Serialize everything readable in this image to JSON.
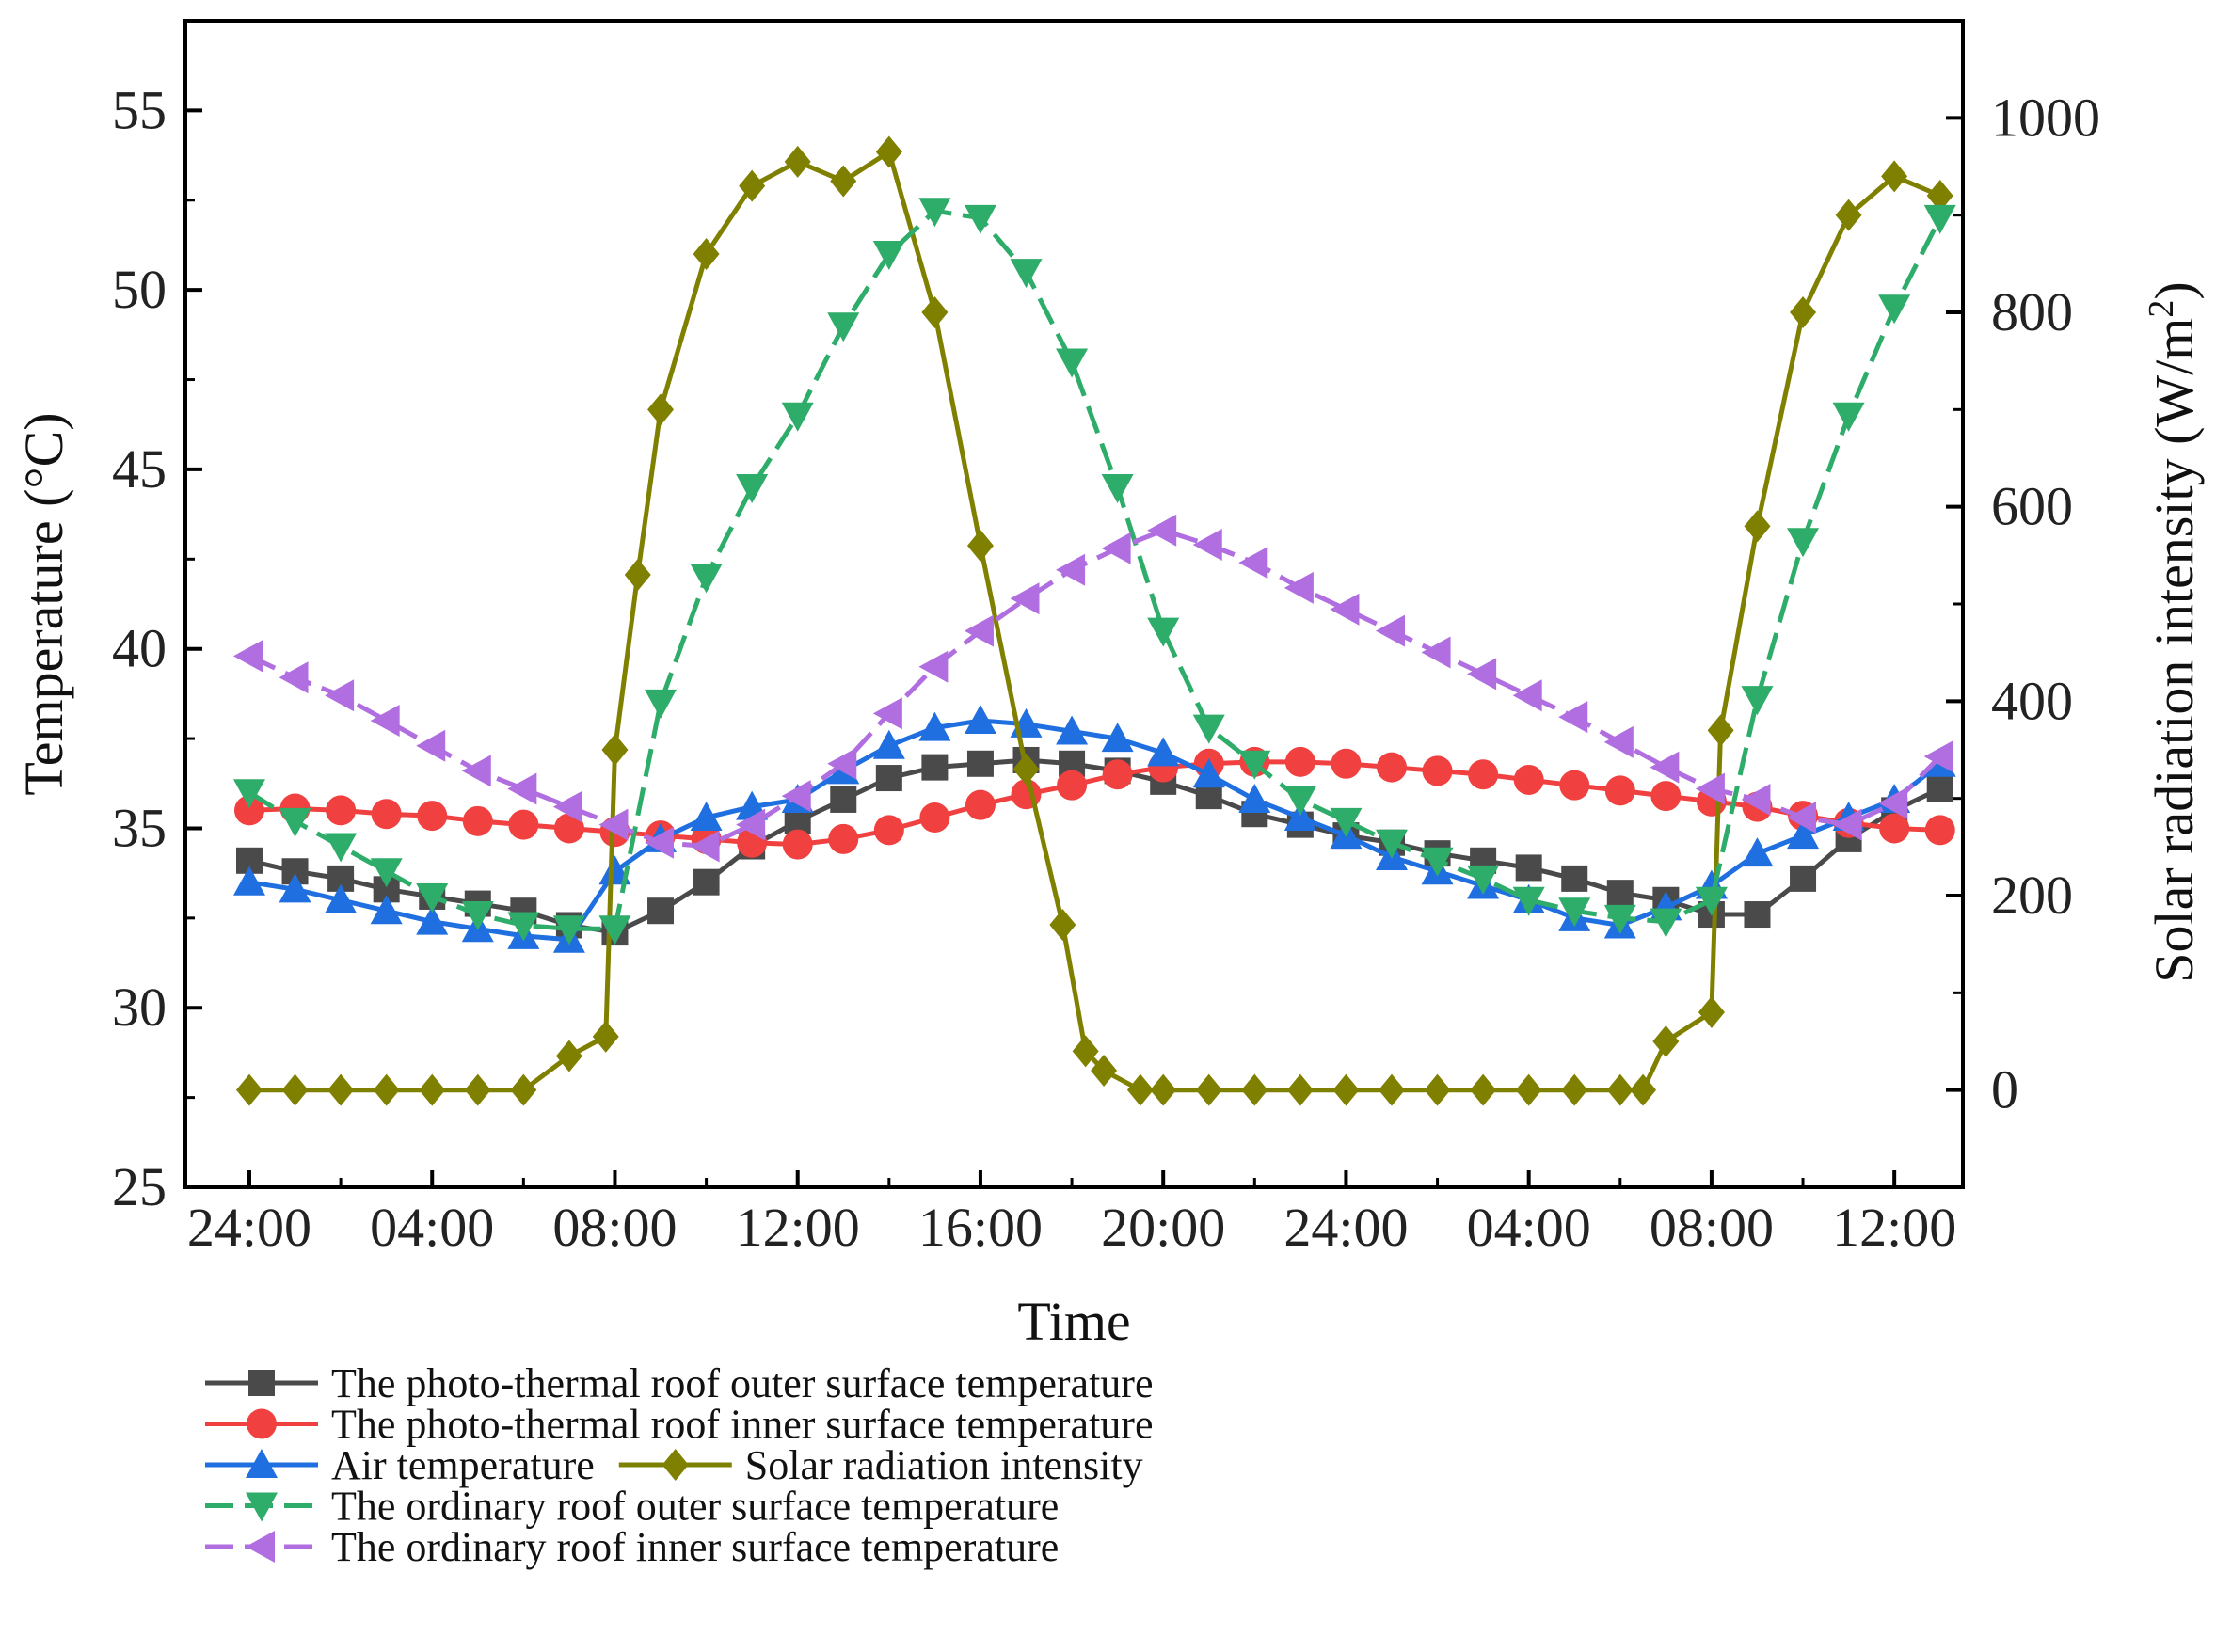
{
  "chart_data": {
    "type": "line",
    "xlabel": "Time",
    "ylabel": "Temperature (°C)",
    "y2label_main": "Solar radiation intensity (W/m",
    "y2label_sup": "2",
    "y2label_end": ")",
    "x_ticks": [
      "24:00",
      "04:00",
      "08:00",
      "12:00",
      "16:00",
      "20:00",
      "24:00",
      "04:00",
      "08:00",
      "12:00"
    ],
    "x_tick_hours": [
      0,
      4,
      8,
      12,
      16,
      20,
      24,
      28,
      32,
      36
    ],
    "xlim": [
      -1.4,
      37.5
    ],
    "ylim": [
      25,
      57.5
    ],
    "y_ticks": [
      25,
      30,
      35,
      40,
      45,
      50,
      55
    ],
    "y2lim": [
      -100,
      1100
    ],
    "y2_ticks": [
      0,
      200,
      400,
      600,
      800,
      1000
    ],
    "series": [
      {
        "name": "The photo-thermal roof outer surface temperature",
        "axis": "left",
        "color": "#4a4a4a",
        "marker": "square",
        "dash": false,
        "x": [
          0,
          1,
          2,
          3,
          4,
          5,
          6,
          7,
          8,
          9,
          10,
          11,
          12,
          13,
          14,
          15,
          16,
          17,
          18,
          19,
          20,
          21,
          22,
          23,
          24,
          25,
          26,
          27,
          28,
          29,
          30,
          31,
          32,
          33,
          34,
          35,
          36,
          37
        ],
        "values": [
          34.1,
          33.8,
          33.6,
          33.3,
          33.1,
          32.9,
          32.7,
          32.3,
          32.1,
          32.7,
          33.5,
          34.5,
          35.2,
          35.8,
          36.4,
          36.7,
          36.8,
          36.9,
          36.8,
          36.6,
          36.3,
          35.9,
          35.4,
          35.1,
          34.8,
          34.6,
          34.3,
          34.1,
          33.9,
          33.6,
          33.2,
          33.0,
          32.6,
          32.6,
          33.6,
          34.7,
          35.5,
          36.1
        ]
      },
      {
        "name": "The photo-thermal roof inner surface temperature",
        "axis": "left",
        "color": "#f04040",
        "marker": "circle",
        "dash": false,
        "x": [
          0,
          1,
          2,
          3,
          4,
          5,
          6,
          7,
          8,
          9,
          10,
          11,
          12,
          13,
          14,
          15,
          16,
          17,
          18,
          19,
          20,
          21,
          22,
          23,
          24,
          25,
          26,
          27,
          28,
          29,
          30,
          31,
          32,
          33,
          34,
          35,
          36,
          37
        ],
        "values": [
          35.5,
          35.55,
          35.5,
          35.4,
          35.35,
          35.2,
          35.1,
          35.0,
          34.9,
          34.8,
          34.7,
          34.6,
          34.55,
          34.7,
          34.95,
          35.3,
          35.65,
          35.95,
          36.2,
          36.5,
          36.7,
          36.8,
          36.85,
          36.85,
          36.8,
          36.7,
          36.6,
          36.5,
          36.35,
          36.2,
          36.05,
          35.9,
          35.75,
          35.6,
          35.35,
          35.15,
          35.0,
          34.95
        ]
      },
      {
        "name": "Air temperature",
        "axis": "left",
        "color": "#1f6fe0",
        "marker": "triangle-up",
        "dash": false,
        "x": [
          0,
          1,
          2,
          3,
          4,
          5,
          6,
          7,
          8,
          9,
          10,
          11,
          12,
          13,
          14,
          15,
          16,
          17,
          18,
          19,
          20,
          21,
          22,
          23,
          24,
          25,
          26,
          27,
          28,
          29,
          30,
          31,
          32,
          33,
          34,
          35,
          36,
          37
        ],
        "values": [
          33.5,
          33.3,
          33.0,
          32.7,
          32.4,
          32.2,
          32.0,
          31.9,
          33.8,
          34.7,
          35.3,
          35.6,
          35.8,
          36.6,
          37.3,
          37.8,
          38.0,
          37.9,
          37.7,
          37.5,
          37.1,
          36.5,
          35.8,
          35.3,
          34.8,
          34.2,
          33.8,
          33.4,
          33.0,
          32.5,
          32.3,
          32.8,
          33.4,
          34.3,
          34.8,
          35.3,
          35.8,
          36.8
        ]
      },
      {
        "name": "Solar radiation intensity",
        "axis": "right",
        "color": "#808000",
        "marker": "diamond",
        "dash": false,
        "x": [
          0,
          1,
          2,
          3,
          4,
          5,
          6,
          7,
          7.8,
          8,
          8.5,
          9,
          10,
          11,
          12,
          13,
          14,
          15,
          16,
          17,
          17.8,
          18.3,
          18.7,
          19.5,
          20,
          21,
          22,
          23,
          24,
          25,
          26,
          27,
          28,
          29,
          30,
          30.5,
          31,
          32,
          32.2,
          33,
          34,
          35,
          36,
          37
        ],
        "values": [
          0,
          0,
          0,
          0,
          0,
          0,
          0,
          35,
          55,
          350,
          530,
          700,
          860,
          930,
          955,
          935,
          965,
          800,
          560,
          330,
          170,
          40,
          20,
          0,
          0,
          0,
          0,
          0,
          0,
          0,
          0,
          0,
          0,
          0,
          0,
          0,
          50,
          80,
          370,
          580,
          800,
          900,
          940,
          920
        ]
      },
      {
        "name": "The ordinary roof outer surface temperature",
        "axis": "left",
        "color": "#2eac6a",
        "marker": "triangle-down",
        "dash": true,
        "x": [
          0,
          1,
          2,
          3,
          4,
          5,
          6,
          7,
          8,
          9,
          10,
          11,
          12,
          13,
          14,
          15,
          16,
          17,
          18,
          19,
          20,
          21,
          22,
          23,
          24,
          25,
          26,
          27,
          28,
          29,
          30,
          31,
          32,
          33,
          34,
          35,
          36,
          37
        ],
        "values": [
          36.0,
          35.2,
          34.5,
          33.8,
          33.1,
          32.6,
          32.3,
          32.2,
          32.2,
          38.5,
          42.0,
          44.5,
          46.5,
          49.0,
          51.0,
          52.2,
          52.0,
          50.5,
          48.0,
          44.5,
          40.5,
          37.8,
          36.8,
          35.8,
          35.2,
          34.6,
          34.1,
          33.6,
          33.0,
          32.7,
          32.5,
          32.4,
          33.0,
          38.6,
          43.0,
          46.5,
          49.5,
          52.0
        ]
      },
      {
        "name": "The ordinary roof inner surface temperature",
        "axis": "left",
        "color": "#b06ee0",
        "marker": "triangle-left",
        "dash": true,
        "x": [
          0,
          1,
          2,
          3,
          4,
          5,
          6,
          7,
          8,
          9,
          10,
          11,
          12,
          13,
          14,
          15,
          16,
          17,
          18,
          19,
          20,
          21,
          22,
          23,
          24,
          25,
          26,
          27,
          28,
          29,
          30,
          31,
          32,
          33,
          34,
          35,
          36,
          37
        ],
        "values": [
          39.8,
          39.2,
          38.7,
          38.0,
          37.3,
          36.6,
          36.1,
          35.6,
          35.1,
          34.6,
          34.5,
          35.1,
          35.9,
          36.8,
          38.2,
          39.5,
          40.5,
          41.4,
          42.2,
          42.8,
          43.3,
          42.9,
          42.4,
          41.7,
          41.1,
          40.5,
          39.9,
          39.3,
          38.7,
          38.1,
          37.4,
          36.7,
          36.1,
          35.8,
          35.3,
          35.1,
          35.7,
          37.0
        ]
      }
    ],
    "legend": {
      "rows": [
        [
          "The photo-thermal roof outer surface temperature"
        ],
        [
          "The photo-thermal roof inner surface temperature"
        ],
        [
          "Air temperature",
          "Solar radiation intensity"
        ],
        [
          "The ordinary roof outer surface temperature"
        ],
        [
          "The ordinary roof inner surface temperature"
        ]
      ],
      "placement": "bottom-left"
    },
    "grid": false
  }
}
